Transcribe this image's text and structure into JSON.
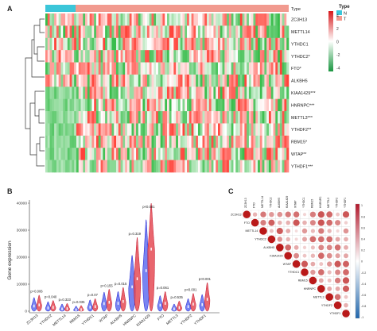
{
  "panels": {
    "a": {
      "label": "A",
      "type_bar_label": "Type",
      "genes": [
        {
          "name": "ZC3H13"
        },
        {
          "name": "METTL14"
        },
        {
          "name": "YTHDC1"
        },
        {
          "name": "YTHDC2*"
        },
        {
          "name": "FTO*"
        },
        {
          "name": "ALKBH5"
        },
        {
          "name": "KIAA1429***"
        },
        {
          "name": "HNRNPC***"
        },
        {
          "name": "METTL3***"
        },
        {
          "name": "YTHDF2**"
        },
        {
          "name": "RBM15*"
        },
        {
          "name": "WTAP**"
        },
        {
          "name": "YTHDF1***"
        }
      ],
      "legend": {
        "title": "Type",
        "items": [
          {
            "label": "N",
            "color": "#3bc6d9"
          },
          {
            "label": "T",
            "color": "#f19a8f"
          }
        ]
      },
      "colorbar": {
        "ticks": [
          "4",
          "2",
          "0",
          "-2",
          "-4"
        ],
        "colors": {
          "high": "#d7191c",
          "mid": "#ffffff",
          "low": "#1a9641"
        }
      }
    },
    "b": {
      "label": "B",
      "ylabel": "Gene expression",
      "yticks": [
        "0",
        "10000",
        "20000",
        "30000",
        "40000"
      ],
      "genes": [
        {
          "name": "ZC3H13",
          "p": "p=0.006",
          "normal": 1900,
          "tumor": 2300
        },
        {
          "name": "YTHDC2",
          "p": "p=0.040",
          "normal": 1200,
          "tumor": 1400
        },
        {
          "name": "METTL14",
          "p": "p=0.323",
          "normal": 800,
          "tumor": 900
        },
        {
          "name": "RBM15",
          "p": "p=0.035",
          "normal": 450,
          "tumor": 550
        },
        {
          "name": "YTHDC1",
          "p": "p=0.07",
          "normal": 1500,
          "tumor": 1700
        },
        {
          "name": "WTAP",
          "p": "p=0.155",
          "normal": 2800,
          "tumor": 3300
        },
        {
          "name": "ALKBH5",
          "p": "p=0.015",
          "normal": 2900,
          "tumor": 3600
        },
        {
          "name": "HNRNPC",
          "p": "p=0.319",
          "normal": 9000,
          "tumor": 12000
        },
        {
          "name": "KIAA1429",
          "p": "p<0.001",
          "normal": 15000,
          "tumor": 23000
        },
        {
          "name": "FTO",
          "p": "p=0.061",
          "normal": 2200,
          "tumor": 2900
        },
        {
          "name": "METTL3",
          "p": "p=0.535",
          "normal": 800,
          "tumor": 1300
        },
        {
          "name": "YTHDF2",
          "p": "p<0.001",
          "normal": 1700,
          "tumor": 2600
        },
        {
          "name": "YTHDF1",
          "p": "p<0.001",
          "normal": 2400,
          "tumor": 4400
        }
      ]
    },
    "c": {
      "label": "C",
      "genes": [
        "ZC3H13",
        "FTO",
        "METTL14",
        "YTHDC2",
        "ALKBH5",
        "KIAA1429",
        "WTAP",
        "YTHDC1",
        "RBM15",
        "HNRNPC",
        "METTL3",
        "YTHDF2",
        "YTHDF1"
      ],
      "colorbar": {
        "ticks": [
          "1",
          "0.8",
          "0.6",
          "0.4",
          "0.2",
          "0",
          "-0.2",
          "-0.4",
          "-0.6",
          "-0.8",
          "-1"
        ]
      }
    }
  }
}
